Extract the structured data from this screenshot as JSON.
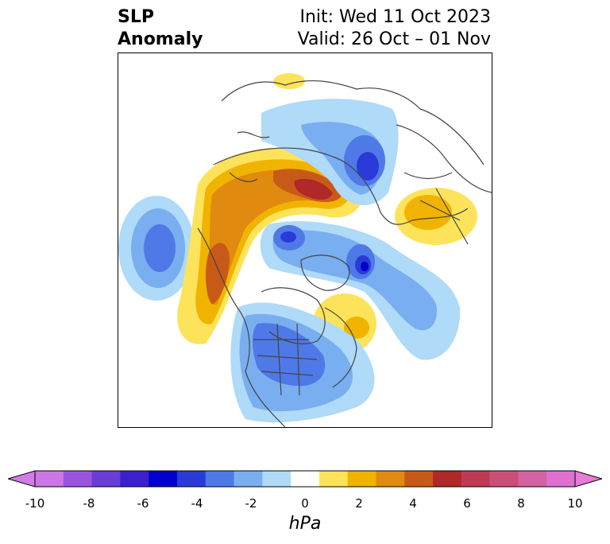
{
  "title": {
    "left_line1": "SLP",
    "left_line2": "Anomaly",
    "right_line1": "Init: Wed 11 Oct 2023",
    "right_line2": "Valid: 26 Oct – 01 Nov"
  },
  "colorbar": {
    "units": "hPa",
    "ticks": [
      "-10",
      "-8",
      "-6",
      "-4",
      "-2",
      "0",
      "2",
      "4",
      "6",
      "8",
      "10"
    ],
    "colors": [
      "#cc77e6",
      "#9a55e0",
      "#6a3cd8",
      "#3b20d0",
      "#0000cc",
      "#2a3ad8",
      "#4f79e6",
      "#79aef0",
      "#afdaf8",
      "#ffffff",
      "#fde35a",
      "#f0b400",
      "#e08a10",
      "#c85a18",
      "#b02828",
      "#c03a55",
      "#cc4f7a",
      "#d562a0",
      "#e070d0"
    ],
    "under_color": "#d27ce8",
    "over_color": "#e87ad8"
  },
  "map": {
    "projection": "north polar stereographic",
    "colors": {
      "land_line": "#444444",
      "blue_light": "#afdaf8",
      "blue_mid": "#79aef0",
      "blue_deep": "#4f79e6",
      "blue_dark": "#2a3ad8",
      "blue_core": "#0000cc",
      "yellow": "#fde35a",
      "orange": "#f0b400",
      "orange_dark": "#e08a10",
      "red_brown": "#c85a18",
      "red": "#b02828"
    }
  }
}
